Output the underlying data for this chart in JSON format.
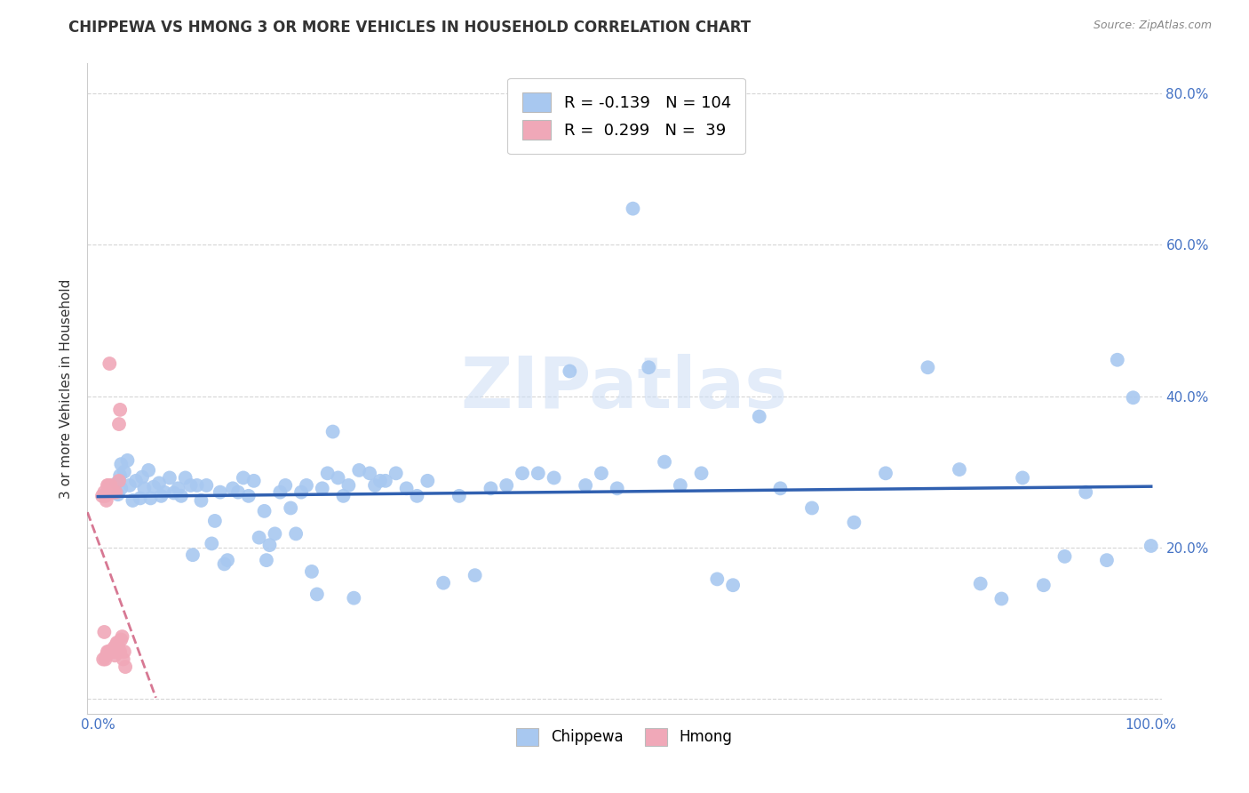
{
  "title": "CHIPPEWA VS HMONG 3 OR MORE VEHICLES IN HOUSEHOLD CORRELATION CHART",
  "source": "Source: ZipAtlas.com",
  "ylabel": "3 or more Vehicles in Household",
  "watermark": "ZIPatlas",
  "legend_chippewa_R": "-0.139",
  "legend_chippewa_N": "104",
  "legend_hmong_R": "0.299",
  "legend_hmong_N": "39",
  "chippewa_color": "#a8c8f0",
  "hmong_color": "#f0a8b8",
  "trendline_chippewa_color": "#3060b0",
  "trendline_hmong_color": "#d06080",
  "xlim": [
    -0.01,
    1.01
  ],
  "ylim": [
    -0.02,
    0.84
  ],
  "xticks": [
    0.0,
    0.1,
    0.2,
    0.3,
    0.4,
    0.5,
    0.6,
    0.7,
    0.8,
    0.9,
    1.0
  ],
  "yticks": [
    0.0,
    0.2,
    0.4,
    0.6,
    0.8
  ],
  "xticklabels": [
    "0.0%",
    "",
    "",
    "",
    "",
    "",
    "",
    "",
    "",
    "",
    "100.0%"
  ],
  "yticklabels": [
    "",
    "20.0%",
    "40.0%",
    "60.0%",
    "80.0%"
  ],
  "chippewa_x": [
    0.021,
    0.022,
    0.022,
    0.018,
    0.019,
    0.025,
    0.028,
    0.03,
    0.033,
    0.036,
    0.04,
    0.042,
    0.044,
    0.048,
    0.05,
    0.053,
    0.058,
    0.06,
    0.063,
    0.068,
    0.072,
    0.076,
    0.079,
    0.083,
    0.088,
    0.09,
    0.094,
    0.098,
    0.103,
    0.108,
    0.111,
    0.116,
    0.12,
    0.123,
    0.128,
    0.133,
    0.138,
    0.143,
    0.148,
    0.153,
    0.158,
    0.16,
    0.163,
    0.168,
    0.173,
    0.178,
    0.183,
    0.188,
    0.193,
    0.198,
    0.203,
    0.208,
    0.213,
    0.218,
    0.223,
    0.228,
    0.233,
    0.238,
    0.243,
    0.248,
    0.258,
    0.263,
    0.268,
    0.273,
    0.283,
    0.293,
    0.303,
    0.313,
    0.328,
    0.343,
    0.358,
    0.373,
    0.388,
    0.403,
    0.418,
    0.433,
    0.448,
    0.463,
    0.478,
    0.493,
    0.508,
    0.523,
    0.538,
    0.553,
    0.573,
    0.588,
    0.603,
    0.628,
    0.648,
    0.678,
    0.718,
    0.748,
    0.788,
    0.818,
    0.838,
    0.858,
    0.878,
    0.898,
    0.918,
    0.938,
    0.958,
    0.968,
    0.983,
    1.0
  ],
  "chippewa_y": [
    0.295,
    0.278,
    0.31,
    0.285,
    0.27,
    0.3,
    0.315,
    0.282,
    0.262,
    0.288,
    0.265,
    0.293,
    0.278,
    0.302,
    0.265,
    0.28,
    0.285,
    0.268,
    0.273,
    0.292,
    0.272,
    0.278,
    0.268,
    0.292,
    0.282,
    0.19,
    0.282,
    0.262,
    0.282,
    0.205,
    0.235,
    0.273,
    0.178,
    0.183,
    0.278,
    0.273,
    0.292,
    0.268,
    0.288,
    0.213,
    0.248,
    0.183,
    0.203,
    0.218,
    0.273,
    0.282,
    0.252,
    0.218,
    0.273,
    0.282,
    0.168,
    0.138,
    0.278,
    0.298,
    0.353,
    0.292,
    0.268,
    0.282,
    0.133,
    0.302,
    0.298,
    0.282,
    0.288,
    0.288,
    0.298,
    0.278,
    0.268,
    0.288,
    0.153,
    0.268,
    0.163,
    0.278,
    0.282,
    0.298,
    0.298,
    0.292,
    0.433,
    0.282,
    0.298,
    0.278,
    0.648,
    0.438,
    0.313,
    0.282,
    0.298,
    0.158,
    0.15,
    0.373,
    0.278,
    0.252,
    0.233,
    0.298,
    0.438,
    0.303,
    0.152,
    0.132,
    0.292,
    0.15,
    0.188,
    0.273,
    0.183,
    0.448,
    0.398,
    0.202
  ],
  "hmong_x": [
    0.004,
    0.005,
    0.006,
    0.006,
    0.007,
    0.007,
    0.008,
    0.008,
    0.009,
    0.009,
    0.01,
    0.01,
    0.011,
    0.011,
    0.012,
    0.012,
    0.013,
    0.013,
    0.014,
    0.014,
    0.015,
    0.015,
    0.016,
    0.016,
    0.017,
    0.017,
    0.018,
    0.018,
    0.019,
    0.019,
    0.02,
    0.02,
    0.021,
    0.021,
    0.022,
    0.023,
    0.024,
    0.025,
    0.026
  ],
  "hmong_y": [
    0.268,
    0.052,
    0.088,
    0.273,
    0.052,
    0.268,
    0.057,
    0.262,
    0.062,
    0.282,
    0.062,
    0.282,
    0.443,
    0.062,
    0.282,
    0.062,
    0.273,
    0.062,
    0.273,
    0.062,
    0.273,
    0.067,
    0.062,
    0.057,
    0.273,
    0.07,
    0.072,
    0.074,
    0.067,
    0.07,
    0.288,
    0.363,
    0.062,
    0.382,
    0.078,
    0.082,
    0.052,
    0.062,
    0.042
  ],
  "hmong_trendline_x_start": -0.01,
  "hmong_trendline_x_end": 0.055,
  "chippewa_trendline_x_start": 0.0,
  "chippewa_trendline_x_end": 1.0
}
